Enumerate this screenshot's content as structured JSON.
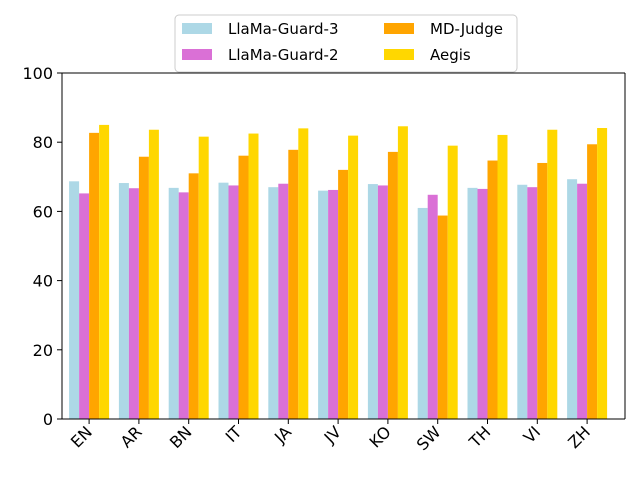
{
  "chart_data": {
    "type": "bar",
    "title": "",
    "xlabel": "",
    "ylabel": "",
    "ylim": [
      0,
      100
    ],
    "yticks": [
      0,
      20,
      40,
      60,
      80,
      100
    ],
    "grid": false,
    "legend_position": "top-center",
    "categories": [
      "EN",
      "AR",
      "BN",
      "IT",
      "JA",
      "JV",
      "KO",
      "SW",
      "TH",
      "VI",
      "ZH"
    ],
    "series": [
      {
        "name": "LlaMa-Guard-3",
        "color": "#add8e6",
        "values": [
          68.7,
          68.2,
          66.8,
          68.3,
          67.0,
          66.0,
          67.9,
          61.0,
          66.8,
          67.7,
          69.3
        ]
      },
      {
        "name": "LlaMa-Guard-2",
        "color": "#da70d6",
        "values": [
          65.2,
          66.7,
          65.5,
          67.5,
          68.0,
          66.2,
          67.5,
          64.8,
          66.5,
          67.0,
          68.0
        ]
      },
      {
        "name": "MD-Judge",
        "color": "#ffa500",
        "values": [
          82.7,
          75.8,
          71.0,
          76.1,
          77.8,
          72.0,
          77.2,
          58.8,
          74.7,
          74.0,
          79.4
        ]
      },
      {
        "name": "Aegis",
        "color": "#ffd700",
        "values": [
          85.0,
          83.6,
          81.6,
          82.5,
          84.0,
          81.9,
          84.6,
          79.0,
          82.1,
          83.6,
          84.1
        ]
      }
    ]
  }
}
